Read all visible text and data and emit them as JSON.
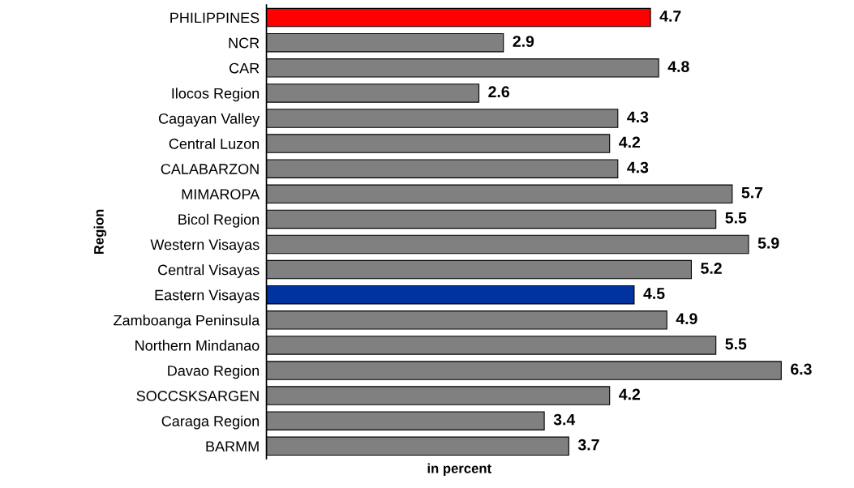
{
  "chart_data": {
    "type": "bar",
    "orientation": "horizontal",
    "xlabel": "in percent",
    "ylabel": "Region",
    "categories": [
      "PHILIPPINES",
      "NCR",
      "CAR",
      "Ilocos Region",
      "Cagayan Valley",
      "Central Luzon",
      "CALABARZON",
      "MIMAROPA",
      "Bicol Region",
      "Western Visayas",
      "Central Visayas",
      "Eastern Visayas",
      "Zamboanga Peninsula",
      "Northern Mindanao",
      "Davao Region",
      "SOCCSKSARGEN",
      "Caraga Region",
      "BARMM"
    ],
    "values": [
      4.7,
      2.9,
      4.8,
      2.6,
      4.3,
      4.2,
      4.3,
      5.7,
      5.5,
      5.9,
      5.2,
      4.5,
      4.9,
      5.5,
      6.3,
      4.2,
      3.4,
      3.7
    ],
    "colors": [
      "#ff0000",
      "#808080",
      "#808080",
      "#808080",
      "#808080",
      "#808080",
      "#808080",
      "#808080",
      "#808080",
      "#808080",
      "#808080",
      "#0033a0",
      "#808080",
      "#808080",
      "#808080",
      "#808080",
      "#808080",
      "#808080"
    ],
    "data_labels": true
  }
}
